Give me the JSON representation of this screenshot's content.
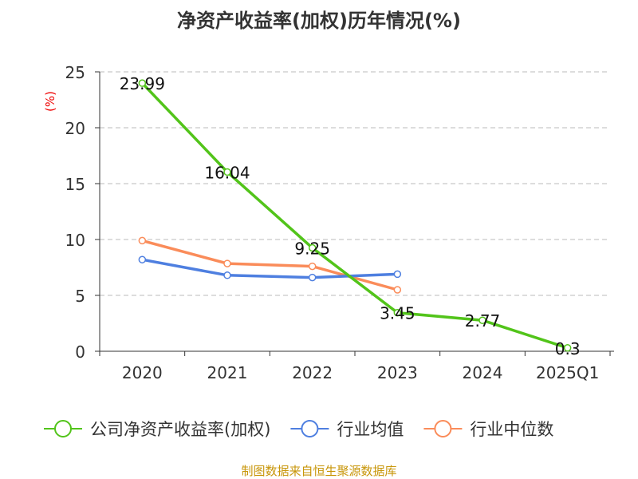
{
  "chart_data": {
    "type": "line",
    "title": "净资产收益率(加权)历年情况(%)",
    "ylabel": "(%)",
    "ylim": [
      0,
      25
    ],
    "yticks": [
      0,
      5,
      10,
      15,
      20,
      25
    ],
    "categories": [
      "2020",
      "2021",
      "2022",
      "2023",
      "2024",
      "2025Q1"
    ],
    "grid": true,
    "legend_placement": "bottom",
    "series": [
      {
        "name": "公司净资产收益率(加权)",
        "color": "#52c41a",
        "values": [
          23.99,
          16.04,
          9.25,
          3.45,
          2.77,
          0.3
        ],
        "labels": [
          "23.99",
          "16.04",
          "9.25",
          "3.45",
          "2.77",
          "0.3"
        ]
      },
      {
        "name": "行业均值",
        "color": "#4e7fe0",
        "values": [
          8.2,
          6.8,
          6.6,
          6.9,
          null,
          null
        ]
      },
      {
        "name": "行业中位数",
        "color": "#fa8c5a",
        "values": [
          9.9,
          7.85,
          7.6,
          5.5,
          null,
          null
        ]
      }
    ],
    "source": "制图数据来自恒生聚源数据库"
  }
}
